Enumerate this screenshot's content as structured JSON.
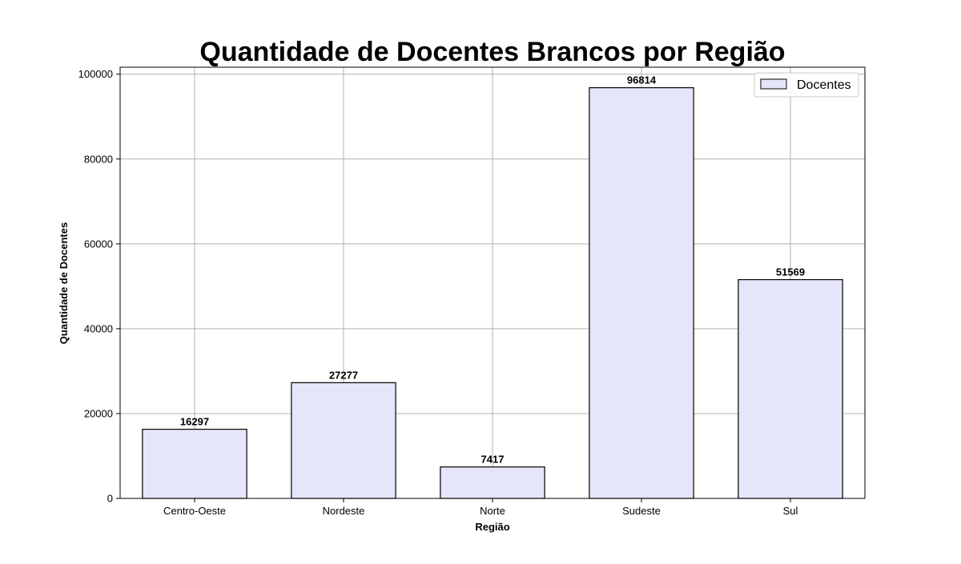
{
  "chart_data": {
    "type": "bar",
    "title": "Quantidade de Docentes Brancos por Região",
    "xlabel": "Região",
    "ylabel": "Quantidade de Docentes",
    "categories": [
      "Centro-Oeste",
      "Nordeste",
      "Norte",
      "Sudeste",
      "Sul"
    ],
    "series": [
      {
        "name": "Docentes",
        "values": [
          16297,
          27277,
          7417,
          96814,
          51569
        ],
        "color": "#e6e6fa",
        "edge_color": "#000000"
      }
    ],
    "data_labels": [
      "16297",
      "27277",
      "7417",
      "96814",
      "51569"
    ],
    "ylim": [
      0,
      101650
    ],
    "yticks": [
      0,
      20000,
      40000,
      60000,
      80000,
      100000
    ],
    "ytick_labels": [
      "0",
      "20000",
      "40000",
      "60000",
      "80000",
      "100000"
    ],
    "grid": true,
    "legend": {
      "position": "top-right",
      "entries": [
        "Docentes"
      ]
    }
  }
}
